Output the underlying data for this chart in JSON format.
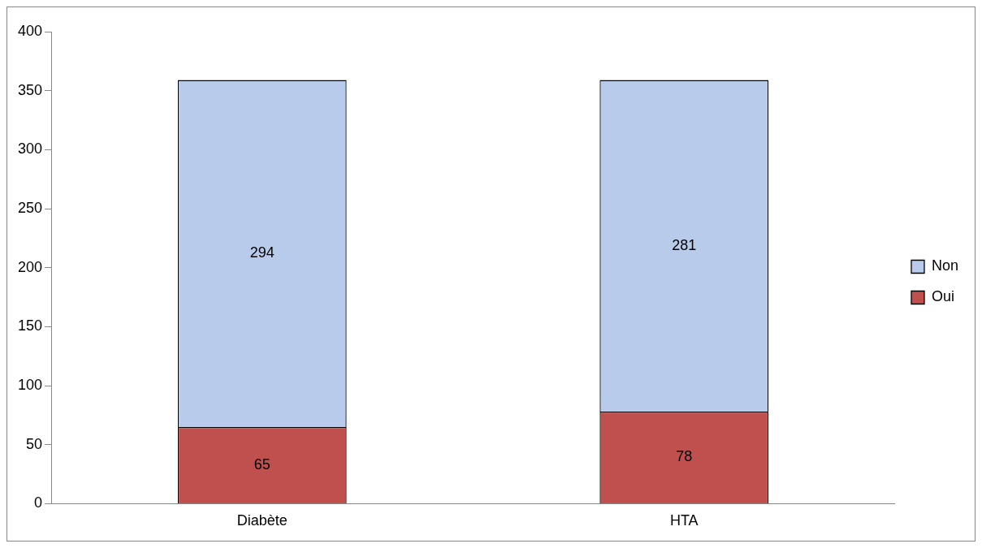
{
  "chart_data": {
    "type": "bar",
    "stacked": true,
    "categories": [
      "Diabète",
      "HTA"
    ],
    "series": [
      {
        "name": "Oui",
        "color": "#c0504d",
        "values": [
          65,
          78
        ]
      },
      {
        "name": "Non",
        "color": "#b9cbea",
        "values": [
          294,
          281
        ]
      }
    ],
    "ylim": [
      0,
      400
    ],
    "yticks": [
      0,
      50,
      100,
      150,
      200,
      250,
      300,
      350,
      400
    ],
    "grid": false,
    "legend": "right",
    "data_labels": true
  }
}
